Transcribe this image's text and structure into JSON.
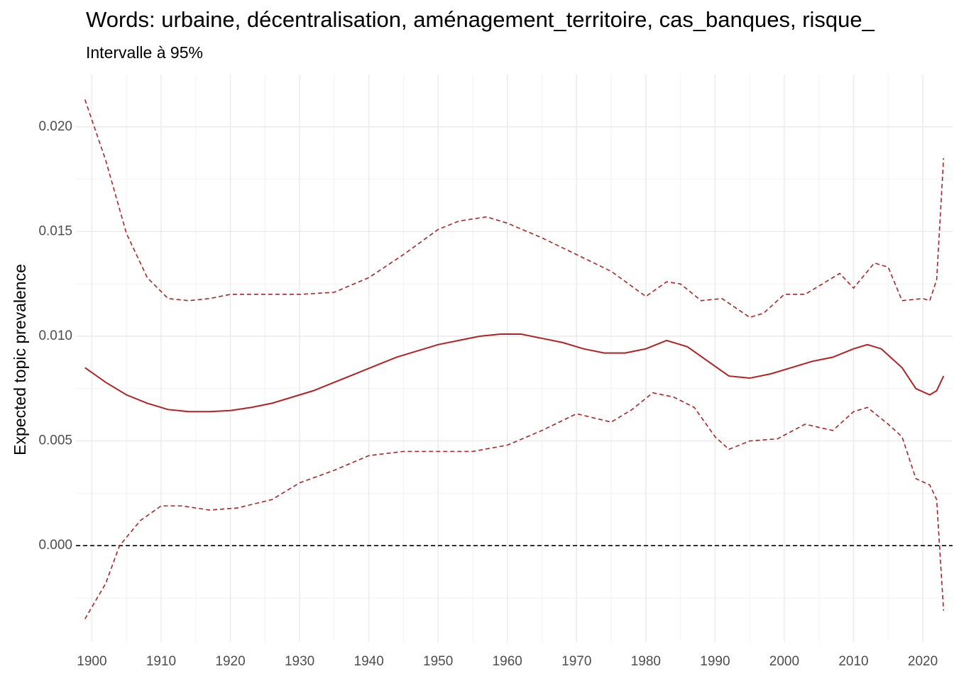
{
  "chart_data": {
    "type": "line",
    "title": "Words: urbaine, décentralisation, aménagement_territoire, cas_banques, risque_",
    "subtitle": "Intervalle à 95%",
    "y_label": "Expected topic prevalence",
    "xlim": [
      1897.7,
      2024.3
    ],
    "xticks": [
      1900,
      1910,
      1920,
      1930,
      1940,
      1950,
      1960,
      1970,
      1980,
      1990,
      2000,
      2010,
      2020
    ],
    "xminor": [
      1905,
      1915,
      1925,
      1935,
      1945,
      1955,
      1965,
      1975,
      1985,
      1995,
      2005,
      2015
    ],
    "ylim": [
      -0.0046,
      0.0225
    ],
    "yticks": [
      {
        "value": 0,
        "label": "0.000"
      },
      {
        "value": 0.005,
        "label": "0.005"
      },
      {
        "value": 0.01,
        "label": "0.010"
      },
      {
        "value": 0.015,
        "label": "0.015"
      },
      {
        "value": 0.02,
        "label": "0.020"
      }
    ],
    "yminor": [
      -0.0025,
      0.0025,
      0.0075,
      0.0125,
      0.0175
    ],
    "grid": true,
    "hline": 0,
    "hline_color": "#000000",
    "series": [
      {
        "color": "#b22222",
        "style": "dashed",
        "x": [
          1899,
          1902,
          1905,
          1908,
          1911,
          1914,
          1917,
          1920,
          1925,
          1930,
          1935,
          1940,
          1945,
          1950,
          1953,
          1957,
          1960,
          1965,
          1970,
          1975,
          1980,
          1983,
          1985,
          1988,
          1991,
          1995,
          1997,
          2000,
          2003,
          2005,
          2008,
          2010,
          2013,
          2015,
          2017,
          2020,
          2021,
          2022,
          2023
        ],
        "values": [
          0.0213,
          0.0184,
          0.0149,
          0.0128,
          0.0118,
          0.0117,
          0.0118,
          0.012,
          0.012,
          0.012,
          0.0121,
          0.0128,
          0.0139,
          0.0151,
          0.0155,
          0.0157,
          0.0154,
          0.0147,
          0.0139,
          0.0131,
          0.0119,
          0.0126,
          0.0125,
          0.0117,
          0.0118,
          0.0109,
          0.0111,
          0.012,
          0.012,
          0.0124,
          0.013,
          0.0123,
          0.0135,
          0.0133,
          0.0117,
          0.0118,
          0.0117,
          0.0127,
          0.0185
        ]
      },
      {
        "color": "#b22222",
        "style": "solid",
        "x": [
          1899,
          1902,
          1905,
          1908,
          1911,
          1914,
          1917,
          1920,
          1923,
          1926,
          1929,
          1932,
          1935,
          1938,
          1941,
          1944,
          1947,
          1950,
          1953,
          1956,
          1959,
          1962,
          1965,
          1968,
          1971,
          1974,
          1977,
          1980,
          1983,
          1986,
          1989,
          1992,
          1995,
          1998,
          2001,
          2004,
          2007,
          2010,
          2012,
          2014,
          2017,
          2019,
          2021,
          2022,
          2023
        ],
        "values": [
          0.0085,
          0.0078,
          0.0072,
          0.0068,
          0.0065,
          0.0064,
          0.0064,
          0.00645,
          0.0066,
          0.0068,
          0.0071,
          0.0074,
          0.0078,
          0.0082,
          0.0086,
          0.009,
          0.0093,
          0.0096,
          0.0098,
          0.01,
          0.0101,
          0.0101,
          0.0099,
          0.0097,
          0.0094,
          0.0092,
          0.0092,
          0.0094,
          0.0098,
          0.0095,
          0.0088,
          0.0081,
          0.008,
          0.0082,
          0.0085,
          0.0088,
          0.009,
          0.0094,
          0.0096,
          0.0094,
          0.0085,
          0.0075,
          0.0072,
          0.0074,
          0.0081
        ]
      },
      {
        "color": "#b22222",
        "style": "dashed",
        "x": [
          1899,
          1902,
          1904,
          1907,
          1910,
          1913,
          1917,
          1921,
          1926,
          1930,
          1935,
          1940,
          1945,
          1950,
          1955,
          1960,
          1965,
          1970,
          1975,
          1978,
          1981,
          1984,
          1987,
          1990,
          1992,
          1995,
          1999,
          2003,
          2007,
          2010,
          2012,
          2015,
          2017,
          2019,
          2021,
          2022,
          2023
        ],
        "values": [
          -0.0035,
          -0.0018,
          0,
          0.0012,
          0.0019,
          0.0019,
          0.0017,
          0.0018,
          0.0022,
          0.003,
          0.0036,
          0.0043,
          0.0045,
          0.0045,
          0.0045,
          0.0048,
          0.0055,
          0.0063,
          0.0059,
          0.0065,
          0.0073,
          0.0071,
          0.0066,
          0.0052,
          0.0046,
          0.005,
          0.0051,
          0.0058,
          0.0055,
          0.0064,
          0.0066,
          0.0058,
          0.0052,
          0.0032,
          0.0029,
          0.0022,
          -0.0031
        ]
      }
    ]
  }
}
